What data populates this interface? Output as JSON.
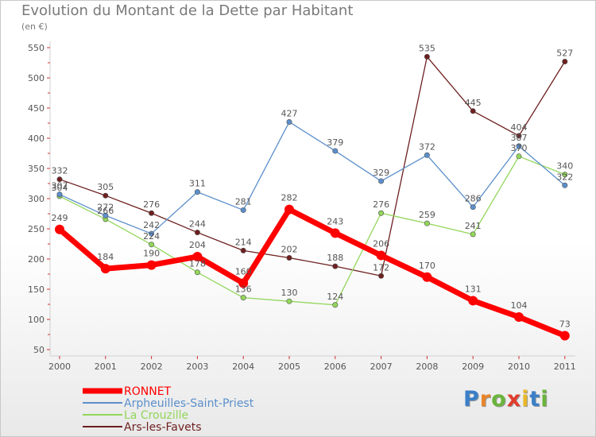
{
  "header": {
    "title": "Evolution du Montant de la Dette par Habitant",
    "subtitle": "(en €)"
  },
  "logo": {
    "text": "Proxiti",
    "letters": [
      {
        "ch": "P",
        "color": "#3a7fc8"
      },
      {
        "ch": "r",
        "color": "#e8842a"
      },
      {
        "ch": "o",
        "color": "#6ab43c"
      },
      {
        "ch": "x",
        "color": "#e13c2c"
      },
      {
        "ch": "i",
        "color": "#e8b82a"
      },
      {
        "ch": "t",
        "color": "#3a7fc8"
      },
      {
        "ch": "i",
        "color": "#6ab43c"
      }
    ]
  },
  "chart_data": {
    "type": "line",
    "title": "Evolution du Montant de la Dette par Habitant",
    "subtitle": "(en €)",
    "x": [
      "2000",
      "2001",
      "2002",
      "2003",
      "2004",
      "2005",
      "2006",
      "2007",
      "2008",
      "2009",
      "2010",
      "2011"
    ],
    "ylim": [
      50,
      550
    ],
    "yticks": [
      50,
      100,
      150,
      200,
      250,
      300,
      350,
      400,
      450,
      500,
      550
    ],
    "grid": false,
    "legend": "bottom-left",
    "series": [
      {
        "name": "Ars-les-Favets",
        "color": "#6e1f1f",
        "values": [
          332,
          305,
          276,
          244,
          214,
          202,
          188,
          172,
          535,
          445,
          404,
          527
        ]
      },
      {
        "name": "La Crouzille",
        "color": "#92d65a",
        "values": [
          304,
          266,
          224,
          178,
          136,
          130,
          124,
          276,
          259,
          241,
          370,
          340
        ]
      },
      {
        "name": "Arpheuilles-Saint-Priest",
        "color": "#5b8fcb",
        "values": [
          307,
          272,
          242,
          311,
          281,
          427,
          379,
          329,
          372,
          286,
          387,
          322
        ]
      },
      {
        "name": "RONNET",
        "color": "#ff0000",
        "values": [
          249,
          184,
          190,
          204,
          160,
          282,
          243,
          206,
          170,
          131,
          104,
          73
        ]
      }
    ],
    "legend_order": [
      "RONNET",
      "Arpheuilles-Saint-Priest",
      "La Crouzille",
      "Ars-les-Favets"
    ]
  }
}
